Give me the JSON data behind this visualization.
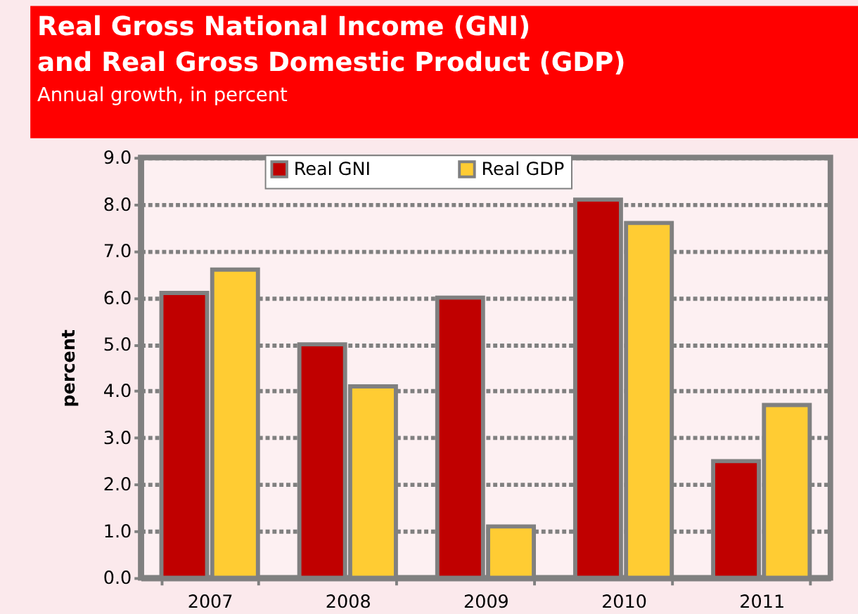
{
  "chart_data": {
    "type": "bar",
    "title": "Real Gross National Income (GNI)\nand Real  Gross Domestic Product (GDP)",
    "subtitle": "Annual growth, in percent",
    "ylabel": "percent",
    "categories": [
      "2007",
      "2008",
      "2009",
      "2010",
      "2011"
    ],
    "series": [
      {
        "name": "Real GNI",
        "color": "#c00000",
        "values": [
          6.1,
          5.0,
          6.0,
          8.1,
          2.5
        ]
      },
      {
        "name": "Real GDP",
        "color": "#ffcc33",
        "values": [
          6.6,
          4.1,
          1.1,
          7.6,
          3.7
        ]
      }
    ],
    "ylim": [
      0,
      9
    ],
    "yticks": [
      {
        "value": 0,
        "label": "0.0"
      },
      {
        "value": 1,
        "label": "1.0"
      },
      {
        "value": 2,
        "label": "2.0"
      },
      {
        "value": 3,
        "label": "3.0"
      },
      {
        "value": 4,
        "label": "4.0"
      },
      {
        "value": 5,
        "label": "5.0"
      },
      {
        "value": 6,
        "label": "6.0"
      },
      {
        "value": 7,
        "label": "7.0"
      },
      {
        "value": 8,
        "label": "8.0"
      },
      {
        "value": 9,
        "label": "9.0"
      }
    ],
    "grid": "y",
    "legend": "top left"
  }
}
